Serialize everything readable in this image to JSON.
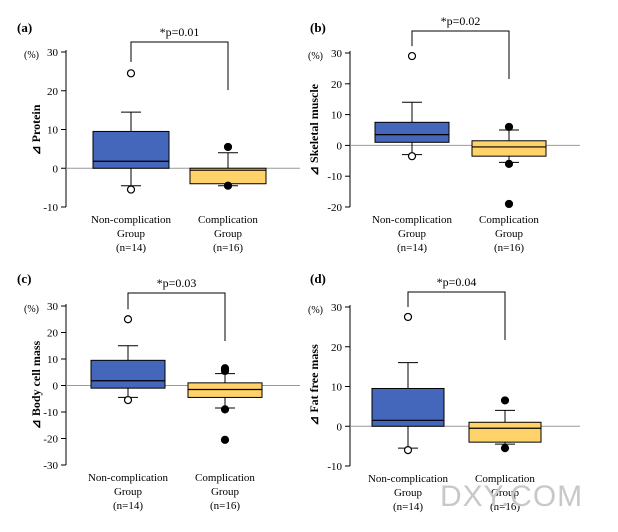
{
  "figure": {
    "watermark": "DXY.COM"
  },
  "colors": {
    "box_noncomp": "#4466bb",
    "box_comp": "#ffd36a",
    "zero_line": "#999999",
    "outline": "#000000"
  },
  "chart_data": [
    {
      "type": "box",
      "panel_label": "(a)",
      "ylabel": "Protein",
      "delta_symbol": "⊿",
      "unit": "(%)",
      "ylim": [
        -10,
        30
      ],
      "yticks": [
        -10,
        0,
        10,
        20,
        30
      ],
      "significance": "*p=0.01",
      "groups": [
        {
          "name_lines": [
            "Non-complication",
            "Group",
            "(n=14)"
          ],
          "color": "#4466bb",
          "whisker_low": -4.5,
          "q1": 0,
          "median": 1.8,
          "q3": 9.5,
          "whisker_high": 14.5,
          "outliers": [
            {
              "v": 24.5,
              "open": true
            },
            {
              "v": -5.5,
              "open": true
            }
          ]
        },
        {
          "name_lines": [
            "Complication",
            "Group",
            "(n=16)"
          ],
          "color": "#ffd36a",
          "whisker_low": -4.5,
          "q1": -4,
          "median": -0.5,
          "q3": 0,
          "whisker_high": 4,
          "outliers": [
            {
              "v": 5.5,
              "open": false
            },
            {
              "v": -4.5,
              "open": false
            }
          ]
        }
      ]
    },
    {
      "type": "box",
      "panel_label": "(b)",
      "ylabel": "Skeletal muscle",
      "delta_symbol": "⊿",
      "unit": "(%)",
      "ylim": [
        -20,
        30
      ],
      "yticks": [
        -20,
        -10,
        0,
        10,
        20,
        30
      ],
      "significance": "*p=0.02",
      "groups": [
        {
          "name_lines": [
            "Non-complication",
            "Group",
            "(n=14)"
          ],
          "color": "#4466bb",
          "whisker_low": -3,
          "q1": 1,
          "median": 3.5,
          "q3": 7.5,
          "whisker_high": 14,
          "outliers": [
            {
              "v": 29,
              "open": true
            },
            {
              "v": -3.5,
              "open": true
            }
          ]
        },
        {
          "name_lines": [
            "Complication",
            "Group",
            "(n=16)"
          ],
          "color": "#ffd36a",
          "whisker_low": -5.5,
          "q1": -3.5,
          "median": -0.5,
          "q3": 1.5,
          "whisker_high": 5,
          "outliers": [
            {
              "v": 6,
              "open": false
            },
            {
              "v": -6,
              "open": false
            },
            {
              "v": -19,
              "open": false
            }
          ]
        }
      ]
    },
    {
      "type": "box",
      "panel_label": "(c)",
      "ylabel": "Body cell mass",
      "delta_symbol": "⊿",
      "unit": "(%)",
      "ylim": [
        -30,
        30
      ],
      "yticks": [
        -30,
        -20,
        -10,
        0,
        10,
        20,
        30
      ],
      "significance": "*p=0.03",
      "groups": [
        {
          "name_lines": [
            "Non-complication",
            "Group",
            "(n=14)"
          ],
          "color": "#4466bb",
          "whisker_low": -4.5,
          "q1": -1,
          "median": 1.8,
          "q3": 9.5,
          "whisker_high": 15,
          "outliers": [
            {
              "v": 25,
              "open": true
            },
            {
              "v": -5.5,
              "open": true
            }
          ]
        },
        {
          "name_lines": [
            "Complication",
            "Group",
            "(n=16)"
          ],
          "color": "#ffd36a",
          "whisker_low": -8.5,
          "q1": -4.5,
          "median": -1.5,
          "q3": 1,
          "whisker_high": 4.5,
          "outliers": [
            {
              "v": 6.5,
              "open": false
            },
            {
              "v": 5.5,
              "open": false
            },
            {
              "v": -9,
              "open": false
            },
            {
              "v": -20.5,
              "open": false
            }
          ]
        }
      ]
    },
    {
      "type": "box",
      "panel_label": "(d)",
      "ylabel": "Fat free mass",
      "delta_symbol": "⊿",
      "unit": "(%)",
      "ylim": [
        -10,
        30
      ],
      "yticks": [
        -10,
        0,
        10,
        20,
        30
      ],
      "significance": "*p=0.04",
      "groups": [
        {
          "name_lines": [
            "Non-complication",
            "Group",
            "(n=14)"
          ],
          "color": "#4466bb",
          "whisker_low": -5.5,
          "q1": 0,
          "median": 1.5,
          "q3": 9.5,
          "whisker_high": 16,
          "outliers": [
            {
              "v": 27.5,
              "open": true
            },
            {
              "v": -6,
              "open": true
            }
          ]
        },
        {
          "name_lines": [
            "Complication",
            "Group",
            "(n=16)"
          ],
          "color": "#ffd36a",
          "whisker_low": -4.5,
          "q1": -4,
          "median": -0.5,
          "q3": 1,
          "whisker_high": 4,
          "outliers": [
            {
              "v": 6.5,
              "open": false
            },
            {
              "v": -5.5,
              "open": false
            }
          ]
        }
      ]
    }
  ]
}
